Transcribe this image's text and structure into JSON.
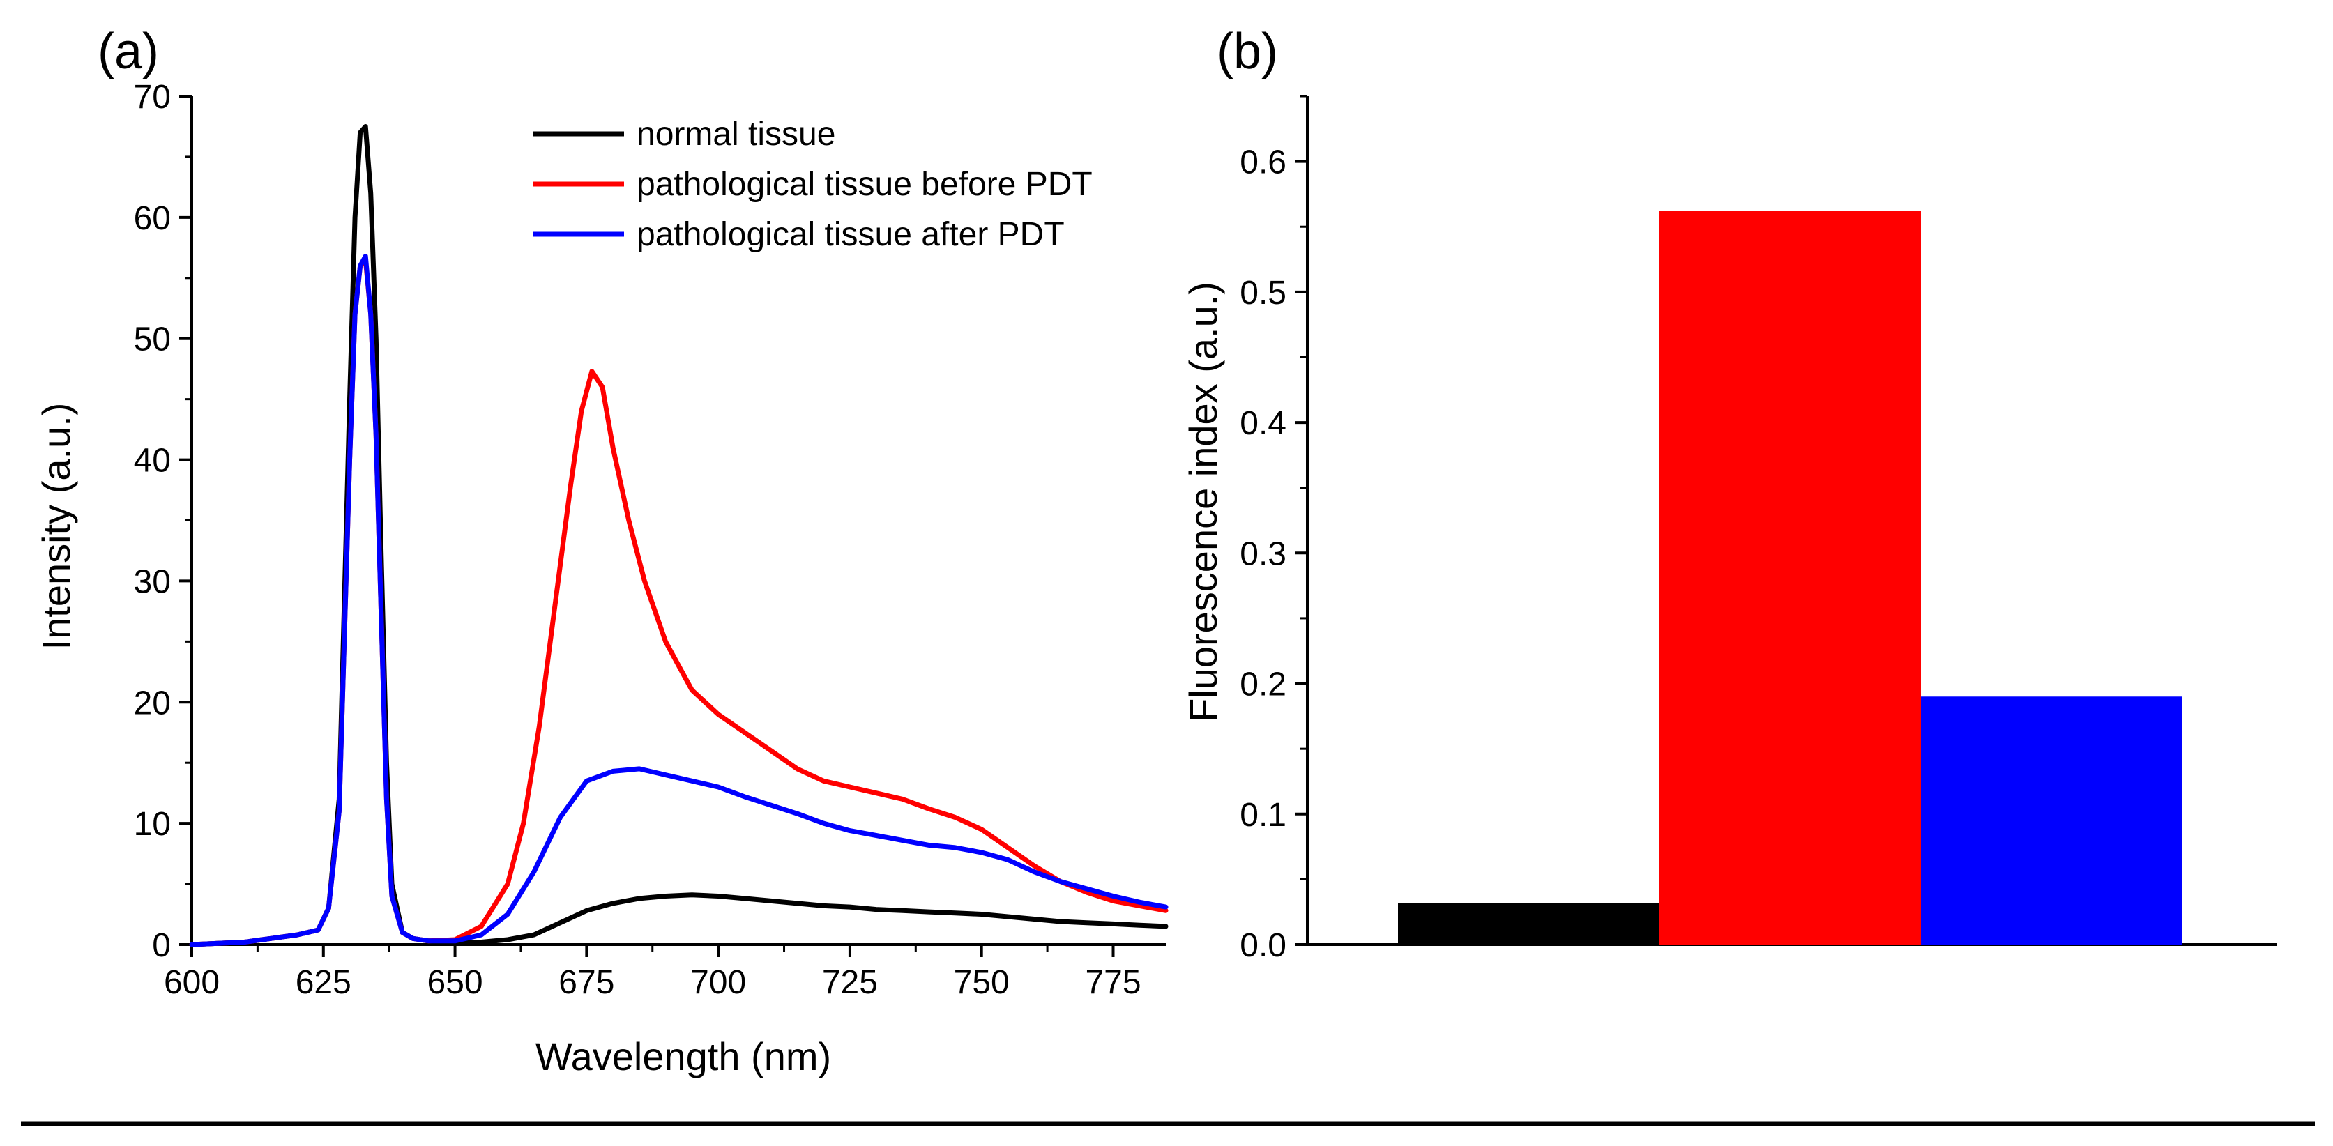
{
  "colors": {
    "normal": "#000000",
    "before": "#ff0000",
    "after": "#0000ff",
    "axis": "#000000",
    "background": "#ffffff"
  },
  "chart_data": [
    {
      "panel": "(a)",
      "type": "line",
      "xlabel": "Wavelength (nm)",
      "ylabel": "Intensity (a.u.)",
      "xlim": [
        600,
        785
      ],
      "ylim": [
        0,
        70
      ],
      "xticks": [
        600,
        625,
        650,
        675,
        700,
        725,
        750,
        775
      ],
      "yticks": [
        0,
        10,
        20,
        30,
        40,
        50,
        60,
        70
      ],
      "legend": "top-right",
      "series": [
        {
          "name": "normal tissue",
          "color": "#000000",
          "x": [
            600,
            610,
            615,
            620,
            624,
            626,
            628,
            630,
            631,
            632,
            633,
            634,
            635,
            636,
            637,
            638,
            640,
            642,
            645,
            650,
            655,
            660,
            665,
            670,
            675,
            680,
            685,
            690,
            695,
            700,
            705,
            710,
            715,
            720,
            725,
            730,
            735,
            740,
            745,
            750,
            755,
            760,
            765,
            770,
            775,
            780,
            785
          ],
          "y": [
            0,
            0.2,
            0.5,
            0.8,
            1.2,
            3,
            12,
            45,
            60,
            67,
            67.5,
            62,
            50,
            32,
            15,
            5,
            1,
            0.5,
            0.3,
            0.2,
            0.2,
            0.4,
            0.8,
            1.8,
            2.8,
            3.4,
            3.8,
            4.0,
            4.1,
            4.0,
            3.8,
            3.6,
            3.4,
            3.2,
            3.1,
            2.9,
            2.8,
            2.7,
            2.6,
            2.5,
            2.3,
            2.1,
            1.9,
            1.8,
            1.7,
            1.6,
            1.5
          ]
        },
        {
          "name": "pathological tissue before PDT",
          "color": "#ff0000",
          "x": [
            600,
            610,
            615,
            620,
            624,
            626,
            628,
            630,
            631,
            632,
            633,
            634,
            635,
            636,
            637,
            638,
            640,
            642,
            645,
            650,
            655,
            660,
            663,
            666,
            669,
            672,
            674,
            676,
            678,
            680,
            683,
            686,
            690,
            695,
            700,
            705,
            710,
            715,
            720,
            725,
            730,
            735,
            740,
            745,
            750,
            755,
            760,
            765,
            770,
            775,
            780,
            785
          ],
          "y": [
            0,
            0.2,
            0.5,
            0.8,
            1.2,
            3,
            11,
            40,
            52,
            56,
            56.5,
            52,
            42,
            27,
            12,
            4,
            1,
            0.5,
            0.3,
            0.4,
            1.5,
            5,
            10,
            18,
            28,
            38,
            44,
            47.3,
            46,
            41,
            35,
            30,
            25,
            21,
            19,
            17.5,
            16,
            14.5,
            13.5,
            13,
            12.5,
            12,
            11.2,
            10.5,
            9.5,
            8,
            6.5,
            5.2,
            4.3,
            3.6,
            3.2,
            2.8
          ]
        },
        {
          "name": "pathological tissue after PDT",
          "color": "#0000ff",
          "x": [
            600,
            610,
            615,
            620,
            624,
            626,
            628,
            630,
            631,
            632,
            633,
            634,
            635,
            636,
            637,
            638,
            640,
            642,
            645,
            650,
            655,
            660,
            665,
            670,
            675,
            680,
            685,
            690,
            695,
            700,
            705,
            710,
            715,
            720,
            725,
            730,
            735,
            740,
            745,
            750,
            755,
            760,
            765,
            770,
            775,
            780,
            785
          ],
          "y": [
            0,
            0.2,
            0.5,
            0.8,
            1.2,
            3,
            11,
            40,
            52,
            56,
            56.8,
            52,
            42,
            27,
            12,
            4,
            1,
            0.5,
            0.3,
            0.3,
            0.8,
            2.5,
            6,
            10.5,
            13.5,
            14.3,
            14.5,
            14,
            13.5,
            13,
            12.2,
            11.5,
            10.8,
            10,
            9.4,
            9,
            8.6,
            8.2,
            8,
            7.6,
            7,
            6,
            5.2,
            4.6,
            4,
            3.5,
            3.1
          ]
        }
      ]
    },
    {
      "panel": "(b)",
      "type": "bar",
      "xlabel": "",
      "ylabel": "Fluorescence index (a.u.)",
      "ylim": [
        0,
        0.65
      ],
      "yticks": [
        0.0,
        0.1,
        0.2,
        0.3,
        0.4,
        0.5,
        0.6
      ],
      "categories": [
        "normal tissue",
        "pathological tissue before PDT",
        "pathological tissue after PDT"
      ],
      "values": [
        0.032,
        0.562,
        0.19
      ],
      "colors": [
        "#000000",
        "#ff0000",
        "#0000ff"
      ]
    }
  ]
}
